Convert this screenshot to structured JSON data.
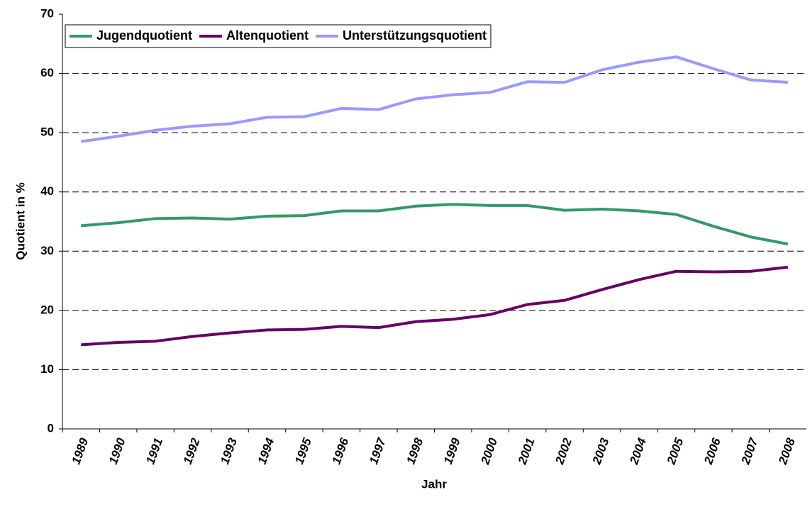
{
  "chart_data": {
    "type": "line",
    "x_label": "Jahr",
    "y_label": "Quotient in %",
    "categories": [
      "1989",
      "1990",
      "1991",
      "1992",
      "1993",
      "1994",
      "1995",
      "1996",
      "1997",
      "1998",
      "1999",
      "2000",
      "2001",
      "2002",
      "2003",
      "2004",
      "2005",
      "2006",
      "2007",
      "2008"
    ],
    "series": [
      {
        "name": "Jugendquotient",
        "color": "#339966",
        "values": [
          34.3,
          34.8,
          35.5,
          35.6,
          35.4,
          35.9,
          36.0,
          36.8,
          36.8,
          37.6,
          37.9,
          37.7,
          37.7,
          36.9,
          37.1,
          36.8,
          36.2,
          34.2,
          32.4,
          31.2
        ]
      },
      {
        "name": "Altenquotient",
        "color": "#660066",
        "values": [
          14.2,
          14.6,
          14.8,
          15.6,
          16.2,
          16.7,
          16.8,
          17.3,
          17.1,
          18.1,
          18.5,
          19.3,
          21.0,
          21.7,
          23.5,
          25.2,
          26.6,
          26.5,
          26.6,
          27.3
        ]
      },
      {
        "name": "Unterstützungsquotient",
        "color": "#9999ff",
        "values": [
          48.5,
          49.4,
          50.4,
          51.1,
          51.5,
          52.6,
          52.7,
          54.1,
          53.9,
          55.7,
          56.4,
          56.8,
          58.6,
          58.5,
          60.6,
          61.9,
          62.8,
          60.8,
          58.9,
          58.5
        ]
      }
    ],
    "ylim": [
      0,
      70
    ],
    "yticks": [
      0,
      10,
      20,
      30,
      40,
      50,
      60,
      70
    ],
    "grid": true,
    "legend": "top-left"
  }
}
